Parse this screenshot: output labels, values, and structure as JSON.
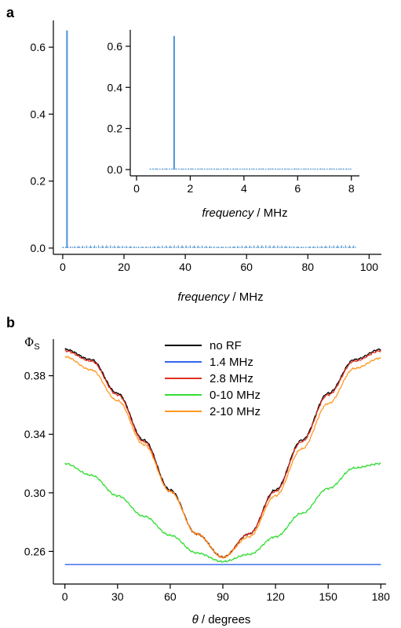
{
  "figure": {
    "panel_a_label": "a",
    "panel_b_label": "b"
  },
  "chart_data": [
    {
      "panel": "a",
      "type": "bar",
      "xlabel_italic": "frequency",
      "xlabel_unit": " / MHz",
      "ylabel": "",
      "xlim": [
        -1,
        104
      ],
      "ylim": [
        0,
        0.68
      ],
      "xticks": [
        0,
        20,
        40,
        60,
        80,
        100
      ],
      "yticks": [
        0.0,
        0.2,
        0.4,
        0.6
      ],
      "ytick_labels": [
        "0.0",
        "0.2",
        "0.4",
        "0.6"
      ],
      "color": "#5b9bd5",
      "peak": {
        "x": 1.4,
        "y": 0.65
      },
      "noise_range_mhz": [
        0,
        96
      ],
      "noise_level": 0.006,
      "grid": false
    },
    {
      "panel": "a-inset",
      "type": "bar",
      "xlabel_italic": "frequency",
      "xlabel_unit": " / MHz",
      "ylabel": "",
      "xlim": [
        0,
        8.3
      ],
      "ylim": [
        0,
        0.68
      ],
      "xticks": [
        0,
        2,
        4,
        6,
        8
      ],
      "yticks": [
        0.0,
        0.2,
        0.4,
        0.6
      ],
      "ytick_labels": [
        "0.0",
        "0.2",
        "0.4",
        "0.6"
      ],
      "color": "#5b9bd5",
      "peak": {
        "x": 1.4,
        "y": 0.65
      },
      "noise_range_mhz": [
        0.5,
        8
      ],
      "noise_level": 0.004,
      "grid": false
    },
    {
      "panel": "b",
      "type": "line",
      "ylabel": "Φ",
      "ylabel_sub": "S",
      "xlabel_italic": "θ",
      "xlabel_unit": " / degrees",
      "xlim": [
        -3,
        183
      ],
      "ylim": [
        0.242,
        0.405
      ],
      "xticks": [
        0,
        30,
        60,
        90,
        120,
        150,
        180
      ],
      "yticks": [
        0.26,
        0.3,
        0.34,
        0.38
      ],
      "ytick_labels": [
        "0.26",
        "0.30",
        "0.34",
        "0.38"
      ],
      "legend_position": "top-center",
      "grid": false,
      "x": [
        0,
        15,
        30,
        45,
        60,
        75,
        90,
        105,
        120,
        135,
        150,
        165,
        180
      ],
      "series": [
        {
          "name": "no RF",
          "color": "#000000",
          "values": [
            0.398,
            0.391,
            0.368,
            0.336,
            0.302,
            0.272,
            0.256,
            0.272,
            0.302,
            0.336,
            0.368,
            0.391,
            0.398
          ]
        },
        {
          "name": "1.4 MHz",
          "color": "#3366ee",
          "values": [
            0.251,
            0.251,
            0.251,
            0.251,
            0.251,
            0.251,
            0.251,
            0.251,
            0.251,
            0.251,
            0.251,
            0.251,
            0.251
          ]
        },
        {
          "name": "2.8 MHz",
          "color": "#e03020",
          "values": [
            0.397,
            0.39,
            0.367,
            0.335,
            0.301,
            0.272,
            0.256,
            0.272,
            0.301,
            0.335,
            0.367,
            0.39,
            0.397
          ]
        },
        {
          "name": "0-10 MHz",
          "color": "#33dd33",
          "values": [
            0.32,
            0.312,
            0.298,
            0.284,
            0.271,
            0.259,
            0.253,
            0.258,
            0.27,
            0.286,
            0.303,
            0.317,
            0.32
          ]
        },
        {
          "name": "2-10 MHz",
          "color": "#ff9922",
          "values": [
            0.393,
            0.384,
            0.363,
            0.333,
            0.301,
            0.272,
            0.256,
            0.27,
            0.298,
            0.33,
            0.361,
            0.385,
            0.392
          ]
        }
      ]
    }
  ]
}
